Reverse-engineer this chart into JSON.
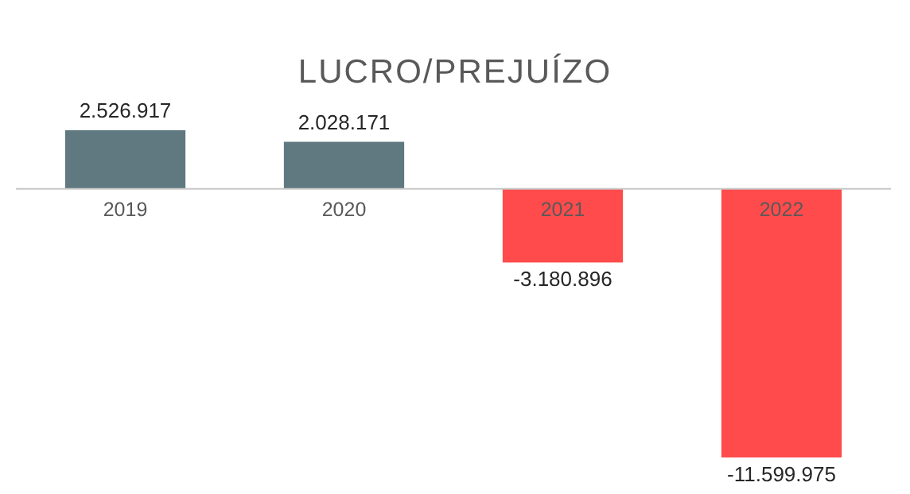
{
  "chart_data": {
    "type": "bar",
    "title": "LUCRO/PREJUÍZO",
    "categories": [
      "2019",
      "2020",
      "2021",
      "2022"
    ],
    "values": [
      2526917,
      2028171,
      -3180896,
      -11599975
    ],
    "colors": [
      "#607880",
      "#607880",
      "#ff4b4b",
      "#ff4b4b"
    ],
    "value_labels": [
      "2.526.917",
      "2.028.171",
      "-3.180.896",
      "-11.599.975"
    ]
  }
}
